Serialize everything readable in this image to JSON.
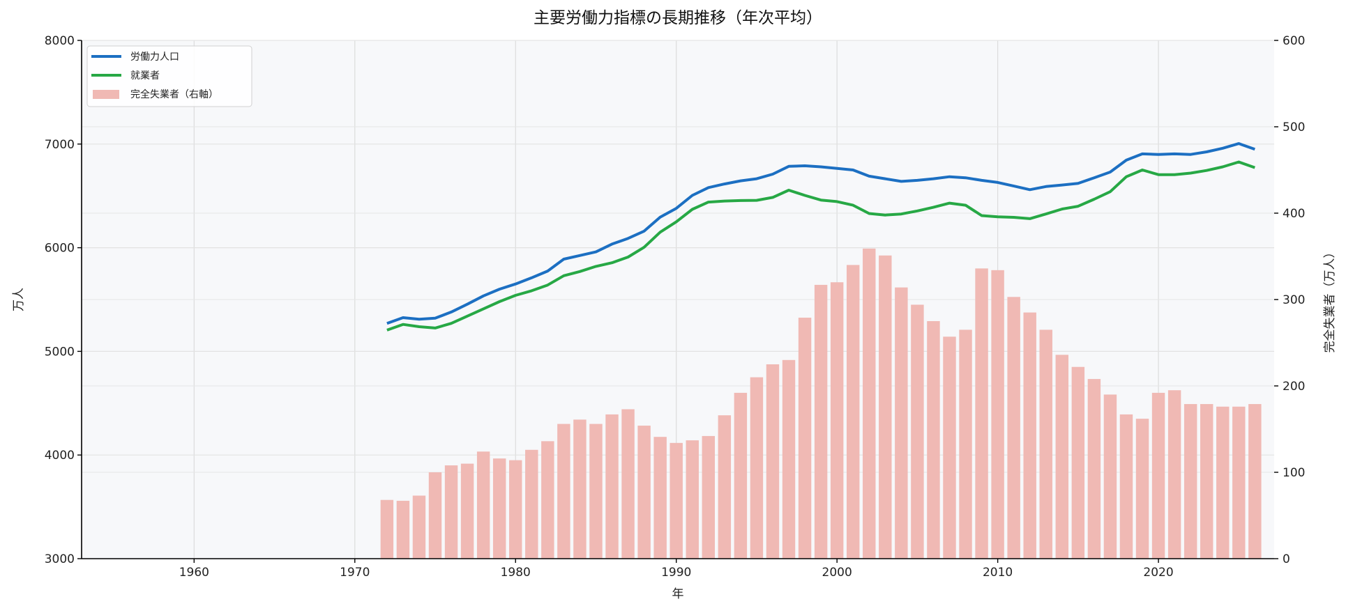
{
  "chart_data": {
    "type": "bar+line",
    "title": "主要労働力指標の長期推移（年次平均）",
    "xlabel": "年",
    "ylabel": "万人",
    "ylabel_right": "完全失業者（万人）",
    "xlim": [
      1953,
      2027.2
    ],
    "ylim": [
      3000,
      8000
    ],
    "ylim_right": [
      0,
      600
    ],
    "x_ticks": [
      1960,
      1970,
      1980,
      1990,
      2000,
      2010,
      2020
    ],
    "y_ticks": [
      3000,
      4000,
      5000,
      6000,
      7000,
      8000
    ],
    "y_ticks_right": [
      0,
      100,
      200,
      300,
      400,
      500,
      600
    ],
    "grid": true,
    "legend_position": "top-left",
    "x": [
      1972,
      1973,
      1974,
      1975,
      1976,
      1977,
      1978,
      1979,
      1980,
      1981,
      1982,
      1983,
      1984,
      1985,
      1986,
      1987,
      1988,
      1989,
      1990,
      1991,
      1992,
      1993,
      1994,
      1995,
      1996,
      1997,
      1998,
      1999,
      2000,
      2001,
      2002,
      2003,
      2004,
      2005,
      2006,
      2007,
      2008,
      2009,
      2010,
      2011,
      2012,
      2013,
      2014,
      2015,
      2016,
      2017,
      2018,
      2019,
      2020,
      2021,
      2022,
      2023,
      2024,
      2025,
      2026
    ],
    "series": [
      {
        "name": "労働力人口",
        "type": "line",
        "axis": "left",
        "color": "#1c6fc2",
        "values": [
          5270,
          5325,
          5310,
          5320,
          5380,
          5455,
          5535,
          5600,
          5650,
          5710,
          5775,
          5890,
          5925,
          5960,
          6035,
          6090,
          6160,
          6295,
          6380,
          6505,
          6580,
          6615,
          6645,
          6665,
          6710,
          6785,
          6790,
          6780,
          6765,
          6750,
          6690,
          6665,
          6640,
          6650,
          6665,
          6685,
          6675,
          6650,
          6630,
          6595,
          6560,
          6590,
          6605,
          6620,
          6675,
          6730,
          6845,
          6905,
          6900,
          6905,
          6900,
          6925,
          6960,
          7005,
          6950
        ]
      },
      {
        "name": "就業者",
        "type": "line",
        "axis": "left",
        "color": "#27a845",
        "values": [
          5205,
          5260,
          5238,
          5225,
          5270,
          5340,
          5410,
          5480,
          5540,
          5585,
          5640,
          5730,
          5770,
          5820,
          5855,
          5910,
          6005,
          6150,
          6250,
          6370,
          6440,
          6450,
          6455,
          6457,
          6485,
          6555,
          6505,
          6460,
          6445,
          6410,
          6330,
          6315,
          6325,
          6355,
          6390,
          6430,
          6410,
          6310,
          6298,
          6293,
          6280,
          6325,
          6373,
          6400,
          6468,
          6540,
          6685,
          6750,
          6705,
          6705,
          6720,
          6745,
          6780,
          6827,
          6773
        ]
      },
      {
        "name": "完全失業者（右軸）",
        "type": "bar",
        "axis": "right",
        "color": "#f0b9b4",
        "values": [
          68,
          67,
          73,
          100,
          108,
          110,
          124,
          116,
          114,
          126,
          136,
          156,
          161,
          156,
          167,
          173,
          154,
          141,
          134,
          137,
          142,
          166,
          192,
          210,
          225,
          230,
          279,
          317,
          320,
          340,
          359,
          351,
          314,
          294,
          275,
          257,
          265,
          336,
          334,
          303,
          285,
          265,
          236,
          222,
          208,
          190,
          167,
          162,
          192,
          195,
          179,
          179,
          176,
          176,
          179
        ]
      }
    ]
  }
}
